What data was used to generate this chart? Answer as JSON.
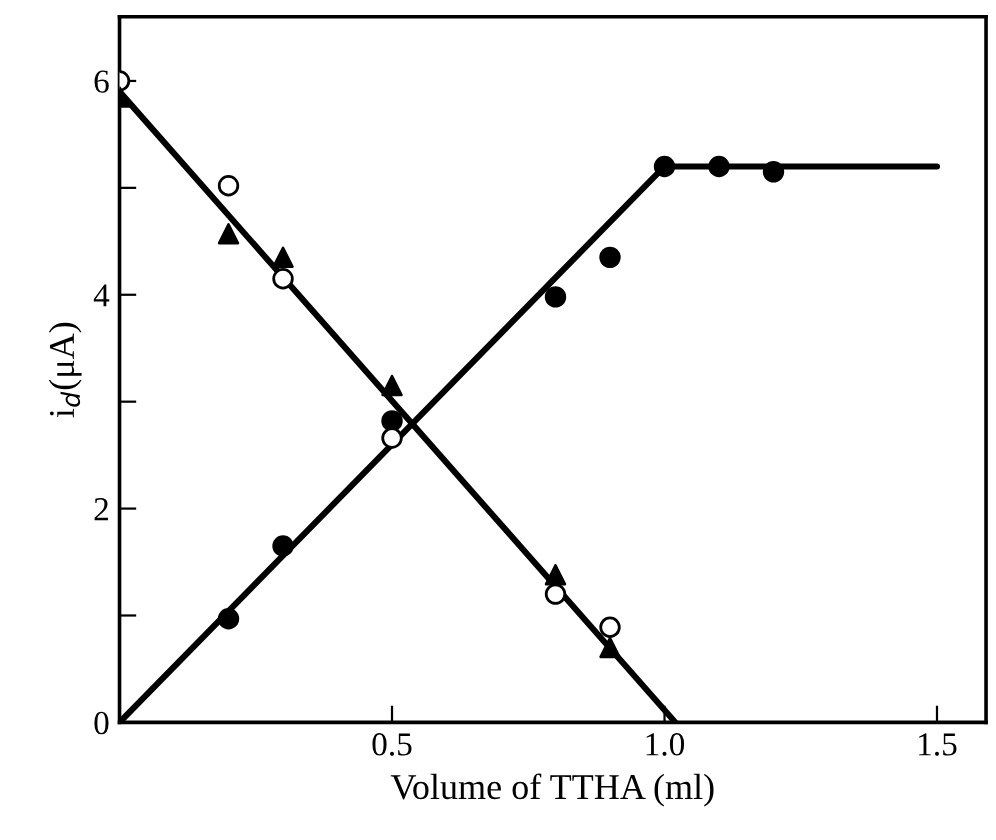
{
  "chart_data": {
    "type": "scatter",
    "xlabel": "Volume of TTHA (ml)",
    "ylabel": "i$_{d}$(μA)",
    "xlim": [
      0,
      1.59
    ],
    "ylim": [
      0,
      6.6
    ],
    "xticks": [
      0.5,
      {
        "value": 1.0,
        "label": "1.0"
      },
      1.5
    ],
    "yticks": [
      0,
      {
        "value": 1,
        "label": null
      },
      2,
      {
        "value": 3,
        "label": null
      },
      4,
      {
        "value": 5,
        "label": null
      },
      6
    ],
    "grid": false,
    "legend": false,
    "series": [
      {
        "type": "line",
        "color": "#000000",
        "marker": "none",
        "x": [
          0,
          1.0,
          1.5
        ],
        "values": [
          0,
          5.2,
          5.2
        ]
      },
      {
        "type": "line",
        "color": "#000000",
        "marker": "none",
        "x": [
          0,
          1.02
        ],
        "values": [
          5.9,
          0
        ]
      },
      {
        "color": "#000000",
        "marker": "circle",
        "x": [
          0.2,
          0.3,
          0.5,
          0.8,
          0.9,
          1.0,
          1.1,
          1.2
        ],
        "values": [
          0.97,
          1.65,
          2.82,
          3.98,
          4.35,
          5.2,
          5.2,
          5.15
        ]
      },
      {
        "color": "#ffffff",
        "marker": "circle",
        "x": [
          0,
          0.2,
          0.3,
          0.5,
          0.8,
          0.9
        ],
        "values": [
          6.0,
          5.02,
          4.15,
          2.66,
          1.2,
          0.89
        ]
      },
      {
        "color": "#000000",
        "marker": "triangle",
        "x": [
          0,
          0.2,
          0.3,
          0.5,
          0.8,
          0.9
        ],
        "values": [
          5.85,
          4.57,
          4.35,
          3.15,
          1.38,
          0.7
        ]
      }
    ]
  }
}
